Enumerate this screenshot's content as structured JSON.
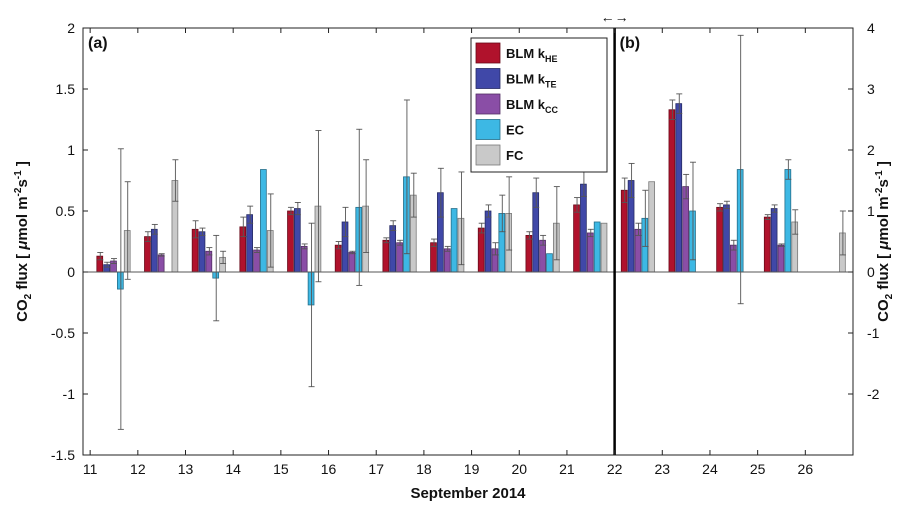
{
  "chart_data": {
    "type": "bar",
    "xlabel": "September 2014",
    "xticks": [
      11,
      12,
      13,
      14,
      15,
      16,
      17,
      18,
      19,
      20,
      21,
      22,
      23,
      24,
      25,
      26
    ],
    "ylim_left": [
      -1.5,
      2
    ],
    "ylim_right": [
      -3,
      4
    ],
    "yticks_left": [
      "-1.5",
      "-1",
      "-0.5",
      "0",
      "0.5",
      "1",
      "1.5",
      "2"
    ],
    "yticks_right": [
      "-2",
      "-1",
      "0",
      "1",
      "2",
      "3",
      "4"
    ],
    "panel_labels": [
      "(a)",
      "(b)"
    ],
    "arrow_glyph": "←→",
    "divider_x": 22,
    "legend_position": "top-center",
    "series": [
      {
        "key": "hk",
        "name": "BLM k",
        "sub": "HE",
        "color": "#b0122c",
        "values": [
          0.13,
          0.29,
          0.35,
          0.37,
          0.5,
          0.22,
          0.26,
          0.24,
          0.36,
          0.3,
          0.55,
          0.67,
          1.33,
          0.53,
          0.45,
          null
        ],
        "err": [
          0.03,
          0.04,
          0.07,
          0.08,
          0.03,
          0.03,
          0.02,
          0.03,
          0.04,
          0.03,
          0.06,
          0.1,
          0.08,
          0.03,
          0.02,
          null
        ]
      },
      {
        "key": "tk",
        "name": "BLM k",
        "sub": "TE",
        "color": "#4048a8",
        "values": [
          0.06,
          0.35,
          0.33,
          0.47,
          0.52,
          0.41,
          0.38,
          0.65,
          0.5,
          0.65,
          0.72,
          0.75,
          1.38,
          0.55,
          0.52,
          null
        ],
        "err": [
          0.02,
          0.04,
          0.03,
          0.07,
          0.05,
          0.12,
          0.04,
          0.2,
          0.05,
          0.12,
          0.1,
          0.14,
          0.08,
          0.03,
          0.03,
          null
        ]
      },
      {
        "key": "ck",
        "name": "BLM k",
        "sub": "CC",
        "color": "#8a4ea6",
        "values": [
          0.09,
          0.14,
          0.17,
          0.18,
          0.21,
          0.16,
          0.24,
          0.19,
          0.19,
          0.26,
          0.32,
          0.35,
          0.7,
          0.22,
          0.22,
          null
        ],
        "err": [
          0.02,
          0.01,
          0.03,
          0.02,
          0.02,
          0.01,
          0.02,
          0.02,
          0.05,
          0.04,
          0.03,
          0.05,
          0.1,
          0.04,
          0.01,
          null
        ]
      },
      {
        "key": "ec",
        "name": "EC",
        "sub": "",
        "color": "#3db8e4",
        "values": [
          -0.14,
          null,
          -0.05,
          0.84,
          -0.27,
          0.53,
          0.78,
          0.52,
          0.48,
          0.15,
          0.41,
          0.44,
          0.5,
          0.84,
          0.84,
          null
        ],
        "err": [
          1.15,
          null,
          0.35,
          0.0,
          0.67,
          0.64,
          0.63,
          0.0,
          0.15,
          0.0,
          0.0,
          0.23,
          0.4,
          1.1,
          0.08,
          null
        ]
      },
      {
        "key": "fc",
        "name": "FC",
        "sub": "",
        "color": "#c9c9c9",
        "values": [
          0.34,
          0.75,
          0.12,
          0.34,
          0.54,
          0.54,
          0.63,
          0.44,
          0.48,
          0.4,
          0.4,
          0.74,
          null,
          null,
          0.41,
          0.32
        ],
        "err": [
          0.4,
          0.17,
          0.05,
          0.3,
          0.62,
          0.38,
          0.18,
          0.38,
          0.3,
          0.3,
          0.0,
          0.0,
          null,
          null,
          0.1,
          0.18
        ]
      }
    ]
  }
}
